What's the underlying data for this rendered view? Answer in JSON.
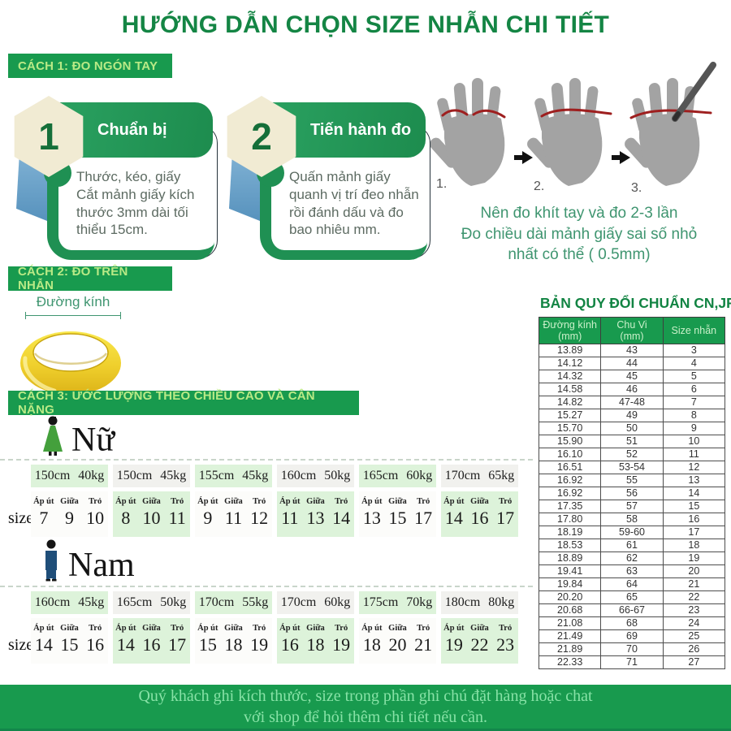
{
  "page": {
    "title": "HƯỚNG DẪN CHỌN SIZE NHẪN CHI TIẾT"
  },
  "colors": {
    "brand_green": "#189a4e",
    "title_green": "#148544",
    "banner_text_green": "#b9ea86",
    "note_green": "#3f9570",
    "cell_light_green": "#ddf3da",
    "cell_light_gray": "#f1f1ee",
    "hexagon_cream": "#f1ebd3",
    "ribbon_blue": "#5792bd",
    "ring_gold": "#e9c522",
    "hand_gray": "#a3a3a3",
    "mark_red": "#9e1f1f"
  },
  "method1": {
    "banner": "CÁCH 1: ĐO NGÓN TAY",
    "steps": [
      {
        "number": "1",
        "title": "Chuẩn bị",
        "body": "Thước, kéo, giấy\nCắt mảnh giấy kích thước 3mm dài tối thiểu 15cm."
      },
      {
        "number": "2",
        "title": "Tiến hành đo",
        "body": "Quấn mảnh giấy quanh vị trí đeo nhẫn rồi đánh dấu và đo bao nhiêu mm."
      }
    ],
    "hand_labels": [
      "1.",
      "2.",
      "3."
    ],
    "note": "Nên đo khít tay và đo 2-3 lần\nĐo chiều dài mảnh giấy sai số nhỏ\nnhất có thể ( 0.5mm)"
  },
  "method2": {
    "banner": "CÁCH 2: ĐO TRÊN NHẪN",
    "ring_label": "Đường kính"
  },
  "conversion_table": {
    "title": "BẢN QUY ĐỔI CHUẨN CN,JP",
    "headers": [
      "Đường kính\n(mm)",
      "Chu Vi\n(mm)",
      "Size nhẫn"
    ],
    "rows": [
      [
        "13.89",
        "43",
        "3"
      ],
      [
        "14.12",
        "44",
        "4"
      ],
      [
        "14.32",
        "45",
        "5"
      ],
      [
        "14.58",
        "46",
        "6"
      ],
      [
        "14.82",
        "47-48",
        "7"
      ],
      [
        "15.27",
        "49",
        "8"
      ],
      [
        "15.70",
        "50",
        "9"
      ],
      [
        "15.90",
        "51",
        "10"
      ],
      [
        "16.10",
        "52",
        "11"
      ],
      [
        "16.51",
        "53-54",
        "12"
      ],
      [
        "16.92",
        "55",
        "13"
      ],
      [
        "16.92",
        "56",
        "14"
      ],
      [
        "17.35",
        "57",
        "15"
      ],
      [
        "17.80",
        "58",
        "16"
      ],
      [
        "18.19",
        "59-60",
        "17"
      ],
      [
        "18.53",
        "61",
        "18"
      ],
      [
        "18.89",
        "62",
        "19"
      ],
      [
        "19.41",
        "63",
        "20"
      ],
      [
        "19.84",
        "64",
        "21"
      ],
      [
        "20.20",
        "65",
        "22"
      ],
      [
        "20.68",
        "66-67",
        "23"
      ],
      [
        "21.08",
        "68",
        "24"
      ],
      [
        "21.49",
        "69",
        "25"
      ],
      [
        "21.89",
        "70",
        "26"
      ],
      [
        "22.33",
        "71",
        "27"
      ]
    ]
  },
  "method3": {
    "banner": "CÁCH 3: ƯỚC LƯỢNG THEO CHIỀU CAO VÀ CÂN NẶNG",
    "finger_labels": [
      "Áp út",
      "Giữa",
      "Trỏ"
    ],
    "size_label": "size",
    "women": {
      "label": "Nữ",
      "groups": [
        {
          "height": "150cm",
          "weight": "40kg",
          "sizes": [
            "7",
            "9",
            "10"
          ]
        },
        {
          "height": "150cm",
          "weight": "45kg",
          "sizes": [
            "8",
            "10",
            "11"
          ]
        },
        {
          "height": "155cm",
          "weight": "45kg",
          "sizes": [
            "9",
            "11",
            "12"
          ]
        },
        {
          "height": "160cm",
          "weight": "50kg",
          "sizes": [
            "11",
            "13",
            "14"
          ]
        },
        {
          "height": "165cm",
          "weight": "60kg",
          "sizes": [
            "13",
            "15",
            "17"
          ]
        },
        {
          "height": "170cm",
          "weight": "65kg",
          "sizes": [
            "14",
            "16",
            "17"
          ]
        }
      ]
    },
    "men": {
      "label": "Nam",
      "groups": [
        {
          "height": "160cm",
          "weight": "45kg",
          "sizes": [
            "14",
            "15",
            "16"
          ]
        },
        {
          "height": "165cm",
          "weight": "50kg",
          "sizes": [
            "14",
            "16",
            "17"
          ]
        },
        {
          "height": "170cm",
          "weight": "55kg",
          "sizes": [
            "15",
            "18",
            "19"
          ]
        },
        {
          "height": "170cm",
          "weight": "60kg",
          "sizes": [
            "16",
            "18",
            "19"
          ]
        },
        {
          "height": "175cm",
          "weight": "70kg",
          "sizes": [
            "18",
            "20",
            "21"
          ]
        },
        {
          "height": "180cm",
          "weight": "80kg",
          "sizes": [
            "19",
            "22",
            "23"
          ]
        }
      ]
    }
  },
  "footer": {
    "text": "Quý khách ghi kích thước, size trong phần ghi chú đặt hàng hoặc chat\nvới shop để hỏi thêm chi tiết nếu cần."
  }
}
